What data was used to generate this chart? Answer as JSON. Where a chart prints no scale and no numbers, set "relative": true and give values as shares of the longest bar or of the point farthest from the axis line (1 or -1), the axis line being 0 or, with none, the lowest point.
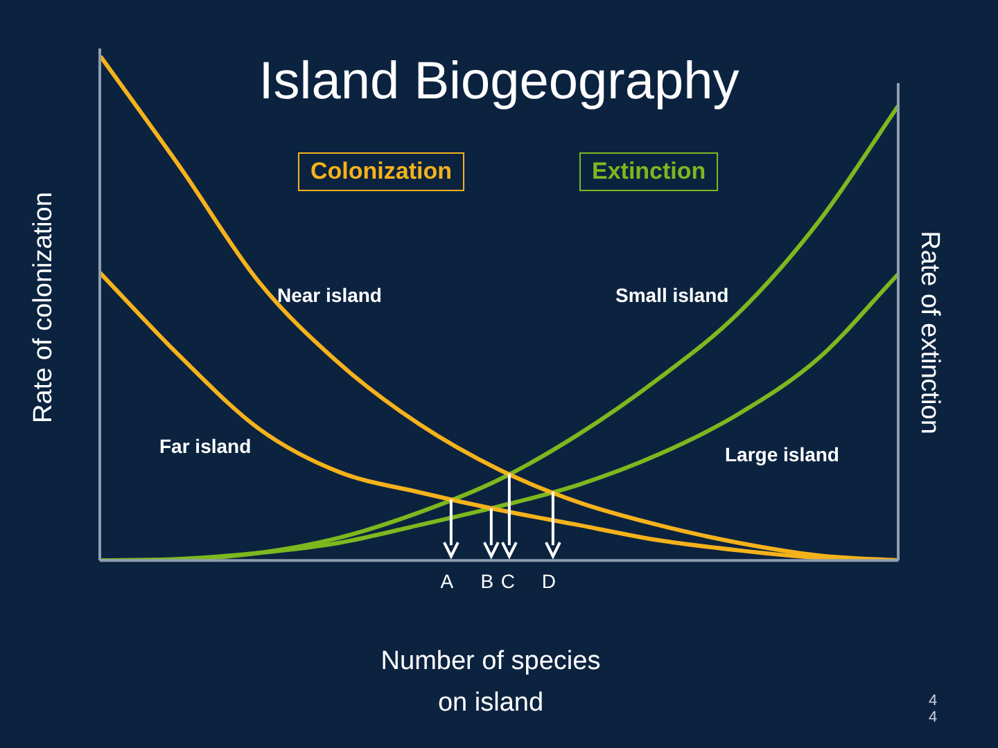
{
  "chart_data": {
    "type": "line",
    "title": "Island Biogeography",
    "xlabel": "Number of species\non island",
    "ylabel": "Rate of colonization",
    "y2label": "Rate of extinction",
    "relative": true,
    "categories": [
      null,
      null,
      null,
      null,
      null,
      null,
      null,
      null,
      null,
      null,
      null
    ],
    "legend": false,
    "marker": "none",
    "line_style": "solid",
    "series": [
      {
        "name": "Near island",
        "color": "#f5b21b",
        "values": [
          1.0,
          0.78,
          0.55,
          0.39,
          0.27,
          0.18,
          0.115,
          0.07,
          0.035,
          0.01,
          0.0
        ]
      },
      {
        "name": "Far island",
        "color": "#f5b21b",
        "values": [
          0.57,
          0.405,
          0.26,
          0.175,
          0.135,
          0.1,
          0.07,
          0.04,
          0.02,
          0.005,
          0.0
        ]
      },
      {
        "name": "Small island",
        "color": "#7db81f",
        "values": [
          0.0,
          0.002,
          0.015,
          0.045,
          0.095,
          0.16,
          0.25,
          0.36,
          0.49,
          0.67,
          0.9
        ]
      },
      {
        "name": "Large island",
        "color": "#7db81f",
        "values": [
          0.0,
          0.003,
          0.015,
          0.035,
          0.07,
          0.107,
          0.15,
          0.21,
          0.29,
          0.4,
          0.567
        ]
      }
    ],
    "annotations": [
      "Colonization",
      "Extinction",
      "A",
      "B",
      "C",
      "D",
      "4",
      "4"
    ]
  }
}
